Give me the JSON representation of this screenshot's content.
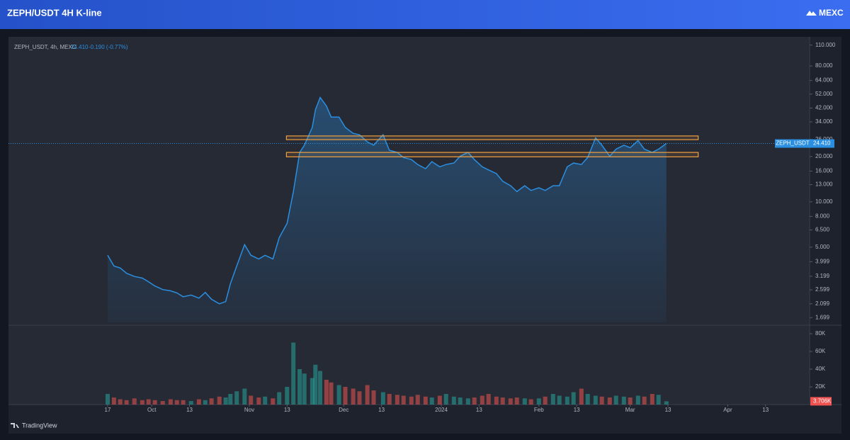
{
  "header": {
    "title": "ZEPH/USDT 4H K-line",
    "brand": "MEXC"
  },
  "footer": "TradingView",
  "chart_data": {
    "type": "line",
    "log_scale": true,
    "grid": false,
    "legend_label": "ZEPH_USDT, 4h, MEXC",
    "change_label": "-0.190 (-0.77%)",
    "price_tag_name": "ZEPH_USDT",
    "last_price": {
      "value": 24.41,
      "label": "24.410"
    },
    "x": [
      0,
      2,
      4,
      6,
      8.5,
      11,
      13,
      15,
      17.5,
      20,
      22,
      24,
      26.5,
      29,
      31,
      33,
      35.5,
      37.5,
      39,
      41,
      43.5,
      45.5,
      48,
      50,
      52.5,
      54.5,
      57,
      59,
      61,
      62.5,
      65,
      66,
      67.5,
      69.5,
      71,
      73.5,
      75.5,
      78,
      80,
      82.5,
      84.5,
      87.5,
      89.5,
      92,
      94,
      96.5,
      98.5,
      101,
      103,
      105.5,
      107.5,
      110,
      112,
      114.5,
      116.5,
      119,
      121,
      123.5,
      125.5,
      128,
      130,
      132.5,
      134.5,
      137,
      139,
      141.5,
      143.5,
      146,
      148,
      150.5,
      152.5,
      155,
      157,
      159.5,
      161.5,
      164,
      166,
      168.5,
      170.5,
      173,
      175,
      177.5
    ],
    "series": [
      {
        "name": "ZEPH_USDT",
        "color": "#2a8fe0",
        "values": [
          4.41,
          3.74,
          3.63,
          3.35,
          3.19,
          3.11,
          2.94,
          2.76,
          2.61,
          2.56,
          2.48,
          2.34,
          2.4,
          2.29,
          2.5,
          2.25,
          2.1,
          2.17,
          2.86,
          3.74,
          5.19,
          4.41,
          4.17,
          4.41,
          4.17,
          5.78,
          7.19,
          11.7,
          21.3,
          23.8,
          31.2,
          40.9,
          49.4,
          43.4,
          36.6,
          36.6,
          31.2,
          28.5,
          27.9,
          25.0,
          23.8,
          27.9,
          22.0,
          21.3,
          19.7,
          19.1,
          17.7,
          16.6,
          18.5,
          17.1,
          17.7,
          18.1,
          20.1,
          21.3,
          19.1,
          17.1,
          16.3,
          15.4,
          13.7,
          12.8,
          11.7,
          12.8,
          11.9,
          12.4,
          11.9,
          12.8,
          12.8,
          17.1,
          18.1,
          17.7,
          19.7,
          26.6,
          23.8,
          20.1,
          22.4,
          23.8,
          22.9,
          25.5,
          22.4,
          21.3,
          22.4,
          24.41
        ]
      }
    ],
    "volume": {
      "up_color": "#26a69a",
      "down_color": "#ef5350",
      "values": [
        12000,
        8000,
        6000,
        5000,
        7000,
        5000,
        6000,
        5000,
        4000,
        6000,
        5000,
        5000,
        4000,
        6000,
        5000,
        7000,
        9000,
        8000,
        12000,
        15000,
        18000,
        10000,
        8000,
        9000,
        7000,
        14000,
        20000,
        70000,
        40000,
        35000,
        30000,
        45000,
        38000,
        28000,
        25000,
        22000,
        20000,
        18000,
        15000,
        22000,
        16000,
        14000,
        12000,
        11000,
        10000,
        9000,
        11000,
        9000,
        8000,
        10000,
        12000,
        9000,
        8000,
        7000,
        8000,
        10000,
        12000,
        9000,
        8000,
        7000,
        8000,
        7000,
        6000,
        7000,
        9000,
        12000,
        10000,
        9000,
        14000,
        18000,
        12000,
        10000,
        9000,
        8000,
        10000,
        9000,
        8000,
        10000,
        9000,
        12000,
        11000,
        3706
      ],
      "ylim": [
        0,
        87200
      ],
      "yticks": [
        {
          "value": 20000,
          "label": "20K"
        },
        {
          "value": 40000,
          "label": "40K"
        },
        {
          "value": 60000,
          "label": "60K"
        },
        {
          "value": 80000,
          "label": "80K"
        }
      ],
      "last": {
        "value": 3706,
        "label": "3.706K"
      }
    },
    "zones": [
      {
        "low": 25.9,
        "high": 27.4,
        "start": 56.8,
        "end": 187.6,
        "color": "#f0a040"
      },
      {
        "low": 19.9,
        "high": 21.3,
        "start": 56.8,
        "end": 187.6,
        "color": "#f0a040"
      }
    ],
    "xlim": [
      -31.5,
      223
    ],
    "xticks": [
      {
        "value": 0,
        "label": "17"
      },
      {
        "value": 14,
        "label": "Oct"
      },
      {
        "value": 26,
        "label": "13"
      },
      {
        "value": 45,
        "label": "Nov"
      },
      {
        "value": 57,
        "label": "13"
      },
      {
        "value": 75,
        "label": "Dec"
      },
      {
        "value": 87,
        "label": "13"
      },
      {
        "value": 106,
        "label": "2024"
      },
      {
        "value": 118,
        "label": "13"
      },
      {
        "value": 137,
        "label": "Feb"
      },
      {
        "value": 149,
        "label": "13"
      },
      {
        "value": 166,
        "label": "Mar"
      },
      {
        "value": 178,
        "label": "13"
      },
      {
        "value": 197,
        "label": "Apr"
      },
      {
        "value": 209,
        "label": "13"
      }
    ],
    "ylim": [
      1.58,
      117
    ],
    "yticks": [
      {
        "value": 110,
        "label": "110.000"
      },
      {
        "value": 80,
        "label": "80.000"
      },
      {
        "value": 64,
        "label": "64.000"
      },
      {
        "value": 52,
        "label": "52.000"
      },
      {
        "value": 42,
        "label": "42.000"
      },
      {
        "value": 34,
        "label": "34.000"
      },
      {
        "value": 26,
        "label": "26.000"
      },
      {
        "value": 20,
        "label": "20.000"
      },
      {
        "value": 16,
        "label": "16.000"
      },
      {
        "value": 13,
        "label": "13.000"
      },
      {
        "value": 10,
        "label": "10.000"
      },
      {
        "value": 8,
        "label": "8.000"
      },
      {
        "value": 6.5,
        "label": "6.500"
      },
      {
        "value": 5,
        "label": "5.000"
      },
      {
        "value": 3.999,
        "label": "3.999"
      },
      {
        "value": 3.199,
        "label": "3.199"
      },
      {
        "value": 2.599,
        "label": "2.599"
      },
      {
        "value": 2.099,
        "label": "2.099"
      },
      {
        "value": 1.699,
        "label": "1.699"
      }
    ]
  }
}
